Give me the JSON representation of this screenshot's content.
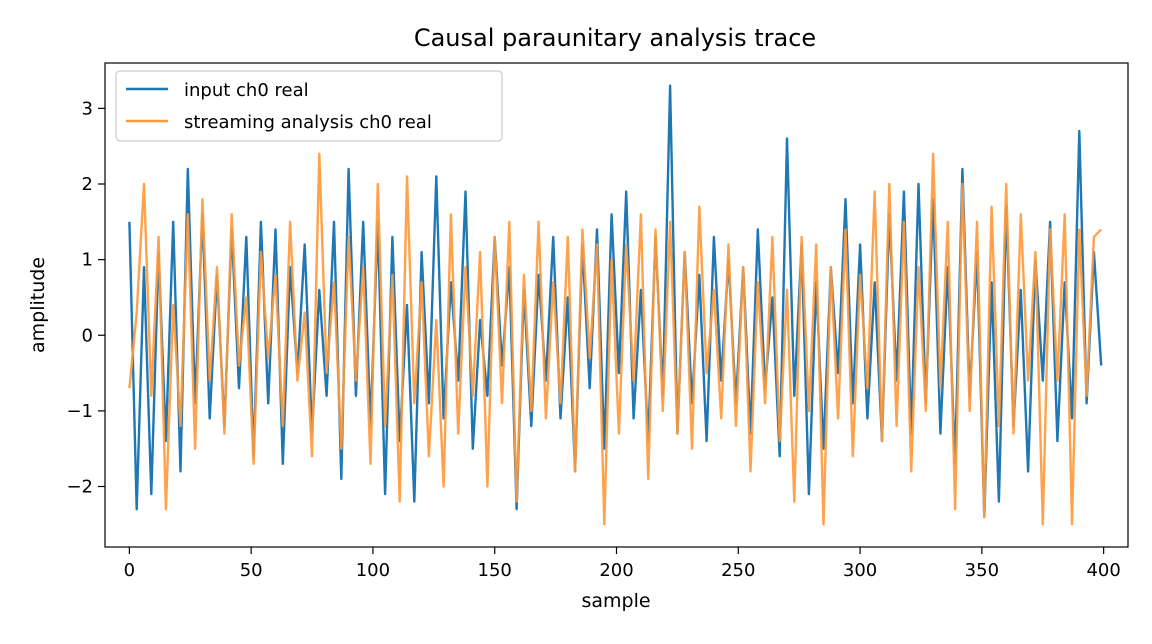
{
  "chart_data": {
    "type": "line",
    "title": "Causal paraunitary analysis trace",
    "xlabel": "sample",
    "ylabel": "amplitude",
    "xlim": [
      -10,
      410
    ],
    "ylim": [
      -2.8,
      3.6
    ],
    "xticks": [
      0,
      50,
      100,
      150,
      200,
      250,
      300,
      350,
      400
    ],
    "xtick_labels": [
      "0",
      "50",
      "100",
      "150",
      "200",
      "250",
      "300",
      "350",
      "400"
    ],
    "yticks": [
      -2,
      -1,
      0,
      1,
      2,
      3
    ],
    "ytick_labels": [
      "−2",
      "−1",
      "0",
      "1",
      "2",
      "3"
    ],
    "grid": false,
    "legend_position": "top-left",
    "series": [
      {
        "name": "input ch0 real",
        "color": "#1f77b4",
        "x": [
          0,
          3,
          6,
          9,
          12,
          15,
          18,
          21,
          24,
          27,
          30,
          33,
          36,
          39,
          42,
          45,
          48,
          51,
          54,
          57,
          60,
          63,
          66,
          69,
          72,
          75,
          78,
          81,
          84,
          87,
          90,
          93,
          96,
          99,
          102,
          105,
          108,
          111,
          114,
          117,
          120,
          123,
          126,
          129,
          132,
          135,
          138,
          141,
          144,
          147,
          150,
          153,
          156,
          159,
          162,
          165,
          168,
          171,
          174,
          177,
          180,
          183,
          186,
          189,
          192,
          195,
          198,
          201,
          204,
          207,
          210,
          213,
          216,
          219,
          222,
          225,
          228,
          231,
          234,
          237,
          240,
          243,
          246,
          249,
          252,
          255,
          258,
          261,
          264,
          267,
          270,
          273,
          276,
          279,
          282,
          285,
          288,
          291,
          294,
          297,
          300,
          303,
          306,
          309,
          312,
          315,
          318,
          321,
          324,
          327,
          330,
          333,
          336,
          339,
          342,
          345,
          348,
          351,
          354,
          357,
          360,
          363,
          366,
          369,
          372,
          375,
          378,
          381,
          384,
          387,
          390,
          393,
          396,
          399
        ],
        "y": [
          1.5,
          -2.3,
          0.9,
          -2.1,
          1.1,
          -1.4,
          1.5,
          -1.8,
          2.2,
          -0.9,
          1.6,
          -1.1,
          0.8,
          -1.2,
          1.4,
          -0.7,
          1.3,
          -1.6,
          1.5,
          -0.9,
          1.4,
          -1.7,
          0.9,
          -0.5,
          1.2,
          -1.3,
          0.6,
          -0.8,
          1.5,
          -1.9,
          2.2,
          -0.8,
          1.5,
          -1.2,
          1.5,
          -2.1,
          1.3,
          -1.4,
          0.4,
          -2.2,
          1.1,
          -0.9,
          2.1,
          -1.1,
          0.7,
          -0.6,
          1.9,
          -1.5,
          0.2,
          -0.8,
          1.3,
          -0.4,
          0.9,
          -2.3,
          0.6,
          -1.2,
          0.8,
          -0.6,
          1.3,
          -1.1,
          0.5,
          -1.8,
          1.2,
          -0.7,
          1.4,
          -1.5,
          1.6,
          -0.5,
          1.9,
          -1.1,
          0.6,
          -1.4,
          1.3,
          -0.8,
          3.3,
          -1.3,
          1.1,
          -0.9,
          0.8,
          -1.4,
          1.3,
          -0.6,
          1.0,
          -0.9,
          0.9,
          -1.3,
          1.4,
          -0.7,
          0.5,
          -1.6,
          2.6,
          -0.8,
          1.2,
          -2.1,
          0.7,
          -1.5,
          0.9,
          -0.5,
          1.8,
          -0.9,
          1.2,
          -1.1,
          0.7,
          -1.4,
          1.6,
          -0.6,
          1.9,
          -1.3,
          2.0,
          -0.9,
          1.8,
          -1.3,
          0.9,
          -1.7,
          2.2,
          -0.8,
          1.1,
          -2.4,
          0.7,
          -2.2,
          1.7,
          -1.2,
          0.6,
          -1.8,
          1.0,
          -0.6,
          1.5,
          -1.4,
          0.7,
          -1.1,
          2.7,
          -0.9,
          1.1,
          -0.4
        ]
      },
      {
        "name": "streaming analysis ch0 real",
        "color": "#ff9a3c",
        "x": [
          0,
          3,
          6,
          9,
          12,
          15,
          18,
          21,
          24,
          27,
          30,
          33,
          36,
          39,
          42,
          45,
          48,
          51,
          54,
          57,
          60,
          63,
          66,
          69,
          72,
          75,
          78,
          81,
          84,
          87,
          90,
          93,
          96,
          99,
          102,
          105,
          108,
          111,
          114,
          117,
          120,
          123,
          126,
          129,
          132,
          135,
          138,
          141,
          144,
          147,
          150,
          153,
          156,
          159,
          162,
          165,
          168,
          171,
          174,
          177,
          180,
          183,
          186,
          189,
          192,
          195,
          198,
          201,
          204,
          207,
          210,
          213,
          216,
          219,
          222,
          225,
          228,
          231,
          234,
          237,
          240,
          243,
          246,
          249,
          252,
          255,
          258,
          261,
          264,
          267,
          270,
          273,
          276,
          279,
          282,
          285,
          288,
          291,
          294,
          297,
          300,
          303,
          306,
          309,
          312,
          315,
          318,
          321,
          324,
          327,
          330,
          333,
          336,
          339,
          342,
          345,
          348,
          351,
          354,
          357,
          360,
          363,
          366,
          369,
          372,
          375,
          378,
          381,
          384,
          387,
          390,
          393,
          396,
          399
        ],
        "y": [
          -0.7,
          0.3,
          2.0,
          -0.8,
          1.3,
          -2.3,
          0.4,
          -1.2,
          1.6,
          -1.5,
          1.8,
          -0.6,
          0.9,
          -1.3,
          1.6,
          -0.4,
          0.5,
          -1.7,
          1.1,
          -0.3,
          0.8,
          -1.2,
          1.5,
          -0.6,
          0.3,
          -1.6,
          2.4,
          -0.5,
          0.7,
          -1.5,
          1.3,
          -0.6,
          0.9,
          -1.7,
          2.0,
          -1.2,
          0.8,
          -2.2,
          2.1,
          -0.9,
          0.7,
          -1.6,
          0.2,
          -2.0,
          1.6,
          -1.3,
          0.9,
          -0.8,
          1.1,
          -2.0,
          1.3,
          -0.9,
          1.5,
          -2.2,
          0.8,
          -1.0,
          1.5,
          -1.1,
          0.7,
          -0.9,
          1.3,
          -1.8,
          1.4,
          -0.3,
          1.2,
          -2.5,
          1.0,
          -1.3,
          1.2,
          -0.6,
          1.6,
          -1.9,
          1.4,
          -1.0,
          1.5,
          -1.3,
          1.1,
          -1.5,
          1.7,
          -0.5,
          0.6,
          -1.1,
          1.2,
          -1.2,
          0.9,
          -1.8,
          0.7,
          -0.9,
          1.3,
          -1.4,
          0.6,
          -2.2,
          1.3,
          -1.0,
          1.2,
          -2.5,
          0.9,
          -1.1,
          1.4,
          -1.6,
          0.8,
          -0.7,
          1.9,
          -1.4,
          2.0,
          -1.2,
          1.5,
          -1.8,
          0.9,
          -1.0,
          2.4,
          -0.7,
          1.5,
          -2.3,
          2.0,
          -1.0,
          1.5,
          -2.4,
          1.7,
          -1.2,
          2.0,
          -1.3,
          1.6,
          -0.6,
          1.1,
          -2.5,
          1.4,
          -0.6,
          1.6,
          -2.5,
          1.4,
          -0.8,
          1.3,
          1.4
        ]
      }
    ]
  }
}
